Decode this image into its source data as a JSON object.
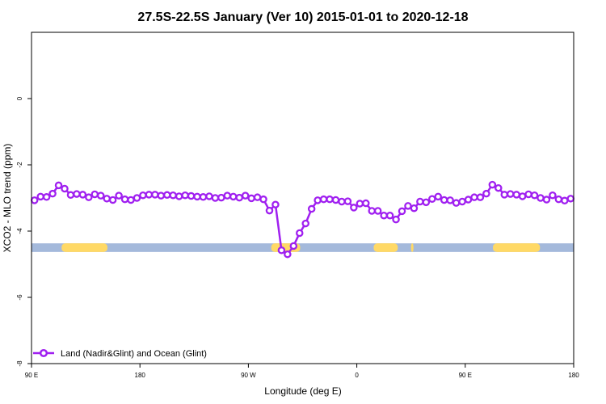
{
  "chart_data": {
    "type": "line",
    "title": "27.5S-22.5S January (Ver 10)   2015-01-01 to 2020-12-18",
    "xlabel": "Longitude (deg E)",
    "ylabel": "XCO2 - MLO trend (ppm)",
    "xlim": [
      0,
      450
    ],
    "ylim": [
      -8,
      2
    ],
    "x_ticks": [
      {
        "value": 0,
        "label": "90 E"
      },
      {
        "value": 90,
        "label": "180"
      },
      {
        "value": 180,
        "label": "90 W"
      },
      {
        "value": 270,
        "label": "0"
      },
      {
        "value": 360,
        "label": "90 E"
      },
      {
        "value": 450,
        "label": "180"
      }
    ],
    "y_ticks": [
      {
        "value": 0,
        "label": "0"
      },
      {
        "value": -2,
        "label": "-2"
      },
      {
        "value": -4,
        "label": "-4"
      },
      {
        "value": -6,
        "label": "-6"
      },
      {
        "value": -8,
        "label": "-8"
      }
    ],
    "grid": false,
    "legend": {
      "position": "bottom-left",
      "entries": [
        {
          "label": "Land (Nadir&Glint) and Ocean (Glint)",
          "color": "#a020f0"
        }
      ]
    },
    "series": [
      {
        "name": "Land (Nadir&Glint) and Ocean (Glint)",
        "color": "#a020f0",
        "x": [
          2.5,
          7.5,
          12.5,
          17.5,
          22.5,
          27.5,
          32.5,
          37.5,
          42.5,
          47.5,
          52.5,
          57.5,
          62.5,
          67.5,
          72.5,
          77.5,
          82.5,
          87.5,
          92.5,
          97.5,
          102.5,
          107.5,
          112.5,
          117.5,
          122.5,
          127.5,
          132.5,
          137.5,
          142.5,
          147.5,
          152.5,
          157.5,
          162.5,
          167.5,
          172.5,
          177.5,
          182.5,
          187.5,
          192.5,
          197.5,
          202.5,
          207.5,
          212.5,
          217.5,
          222.5,
          227.5,
          232.5,
          237.5,
          242.5,
          247.5,
          252.5,
          257.5,
          262.5,
          267.5,
          272.5,
          277.5,
          282.5,
          287.5,
          292.5,
          297.5,
          302.5,
          307.5,
          312.5,
          317.5,
          322.5,
          327.5,
          332.5,
          337.5,
          342.5,
          347.5,
          352.5,
          357.5,
          362.5,
          367.5,
          372.5,
          377.5,
          382.5,
          387.5,
          392.5,
          397.5,
          402.5,
          407.5,
          412.5,
          417.5,
          422.5,
          427.5,
          432.5,
          437.5,
          442.5,
          447.5
        ],
        "values": [
          -3.07,
          -2.96,
          -2.97,
          -2.87,
          -2.62,
          -2.72,
          -2.91,
          -2.88,
          -2.9,
          -2.98,
          -2.89,
          -2.93,
          -3.02,
          -3.06,
          -2.93,
          -3.04,
          -3.06,
          -3.0,
          -2.92,
          -2.9,
          -2.9,
          -2.93,
          -2.91,
          -2.92,
          -2.95,
          -2.92,
          -2.94,
          -2.96,
          -2.97,
          -2.95,
          -3.0,
          -2.99,
          -2.93,
          -2.96,
          -2.99,
          -2.93,
          -3.01,
          -2.98,
          -3.04,
          -3.38,
          -3.2,
          -4.58,
          -4.7,
          -4.45,
          -4.06,
          -3.77,
          -3.33,
          -3.07,
          -3.04,
          -3.04,
          -3.06,
          -3.11,
          -3.1,
          -3.29,
          -3.17,
          -3.16,
          -3.39,
          -3.39,
          -3.53,
          -3.53,
          -3.65,
          -3.4,
          -3.24,
          -3.31,
          -3.11,
          -3.13,
          -3.03,
          -2.96,
          -3.06,
          -3.07,
          -3.15,
          -3.11,
          -3.05,
          -2.98,
          -2.98,
          -2.87,
          -2.6,
          -2.7,
          -2.9,
          -2.88,
          -2.9,
          -2.95,
          -2.89,
          -2.92,
          -3.0,
          -3.05,
          -2.92,
          -3.04,
          -3.08,
          -3.02
        ]
      }
    ],
    "surface_band": {
      "y_top": -4.37,
      "y_bottom": -4.63,
      "ocean_color": "#a4b9db",
      "land_color": "#ffd966",
      "land_segments": [
        [
          25,
          63
        ],
        [
          199,
          223
        ],
        [
          284,
          304
        ],
        [
          315,
          317
        ],
        [
          383,
          422
        ]
      ]
    }
  }
}
